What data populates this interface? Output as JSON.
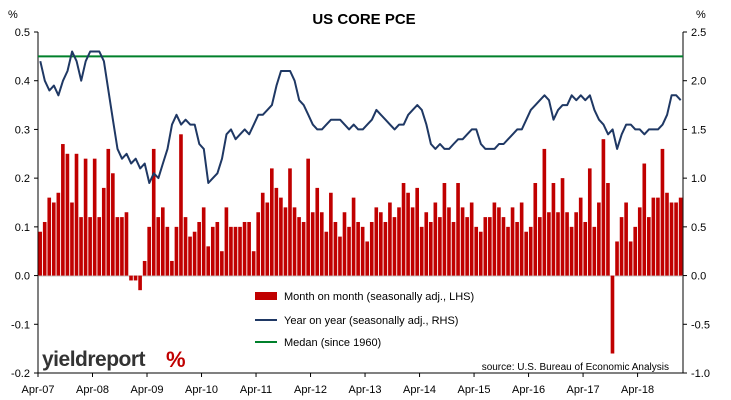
{
  "chart_data": {
    "type": "bar+line",
    "title": "US CORE PCE",
    "y_left": {
      "unit": "%",
      "min": -0.2,
      "max": 0.5,
      "ticks": [
        "-0.2",
        "-0.1",
        "0.0",
        "0.1",
        "0.2",
        "0.3",
        "0.4",
        "0.5"
      ]
    },
    "y_right": {
      "unit": "%",
      "min": -1.0,
      "max": 2.5,
      "ticks": [
        "-1.0",
        "-0.5",
        "0.0",
        "0.5",
        "1.0",
        "1.5",
        "2.0",
        "2.5"
      ]
    },
    "x_ticks": [
      "Apr-07",
      "Apr-08",
      "Apr-09",
      "Apr-10",
      "Apr-11",
      "Apr-12",
      "Apr-13",
      "Apr-14",
      "Apr-15",
      "Apr-16",
      "Apr-17",
      "Apr-18"
    ],
    "start_month": "Apr-07",
    "series": [
      {
        "name": "Month on month (seasonally adj., LHS)",
        "type": "bar",
        "axis": "left",
        "color": "#c00000",
        "values": [
          0.09,
          0.11,
          0.16,
          0.15,
          0.17,
          0.27,
          0.25,
          0.15,
          0.25,
          0.12,
          0.24,
          0.12,
          0.24,
          0.12,
          0.18,
          0.26,
          0.21,
          0.12,
          0.12,
          0.13,
          -0.01,
          -0.01,
          -0.03,
          0.03,
          0.1,
          0.26,
          0.12,
          0.14,
          0.1,
          0.03,
          0.1,
          0.29,
          0.12,
          0.08,
          0.09,
          0.11,
          0.14,
          0.06,
          0.1,
          0.11,
          0.05,
          0.14,
          0.1,
          0.1,
          0.1,
          0.11,
          0.11,
          0.05,
          0.13,
          0.17,
          0.15,
          0.22,
          0.18,
          0.16,
          0.14,
          0.22,
          0.14,
          0.12,
          0.11,
          0.24,
          0.13,
          0.18,
          0.13,
          0.09,
          0.17,
          0.11,
          0.08,
          0.13,
          0.1,
          0.16,
          0.11,
          0.1,
          0.07,
          0.11,
          0.14,
          0.13,
          0.11,
          0.15,
          0.12,
          0.14,
          0.19,
          0.17,
          0.14,
          0.18,
          0.1,
          0.13,
          0.11,
          0.15,
          0.12,
          0.19,
          0.14,
          0.11,
          0.19,
          0.14,
          0.12,
          0.15,
          0.1,
          0.09,
          0.12,
          0.12,
          0.15,
          0.14,
          0.12,
          0.1,
          0.14,
          0.11,
          0.15,
          0.09,
          0.1,
          0.19,
          0.12,
          0.26,
          0.13,
          0.19,
          0.13,
          0.2,
          0.13,
          0.1,
          0.13,
          0.16,
          0.11,
          0.22,
          0.1,
          0.15,
          0.28,
          0.19,
          -0.16,
          0.07,
          0.12,
          0.15,
          0.07,
          0.1,
          0.14,
          0.23,
          0.12,
          0.16,
          0.16,
          0.26,
          0.17,
          0.15,
          0.15,
          0.16
        ]
      },
      {
        "name": "Year on year (seasonally adj., RHS)",
        "type": "line",
        "axis": "right",
        "color": "#1f3864",
        "values": [
          2.2,
          2.0,
          1.9,
          1.95,
          1.85,
          2.0,
          2.1,
          2.3,
          2.2,
          2.0,
          2.2,
          2.3,
          2.3,
          2.3,
          2.2,
          1.9,
          1.6,
          1.3,
          1.2,
          1.25,
          1.15,
          1.2,
          1.1,
          1.15,
          0.95,
          1.05,
          1.0,
          1.15,
          1.3,
          1.55,
          1.65,
          1.55,
          1.6,
          1.55,
          1.55,
          1.35,
          1.3,
          0.95,
          1.0,
          1.05,
          1.2,
          1.45,
          1.5,
          1.4,
          1.45,
          1.5,
          1.45,
          1.55,
          1.65,
          1.65,
          1.7,
          1.75,
          1.95,
          2.1,
          2.1,
          2.1,
          2.0,
          1.8,
          1.75,
          1.65,
          1.55,
          1.5,
          1.5,
          1.55,
          1.6,
          1.6,
          1.6,
          1.55,
          1.5,
          1.55,
          1.5,
          1.5,
          1.55,
          1.6,
          1.7,
          1.65,
          1.6,
          1.55,
          1.5,
          1.55,
          1.55,
          1.65,
          1.7,
          1.75,
          1.7,
          1.55,
          1.35,
          1.3,
          1.35,
          1.3,
          1.3,
          1.35,
          1.4,
          1.4,
          1.45,
          1.5,
          1.5,
          1.35,
          1.3,
          1.3,
          1.3,
          1.35,
          1.35,
          1.4,
          1.45,
          1.5,
          1.5,
          1.6,
          1.7,
          1.75,
          1.8,
          1.85,
          1.8,
          1.6,
          1.7,
          1.75,
          1.75,
          1.85,
          1.8,
          1.85,
          1.8,
          1.85,
          1.7,
          1.6,
          1.55,
          1.45,
          1.5,
          1.3,
          1.45,
          1.55,
          1.55,
          1.5,
          1.5,
          1.45,
          1.5,
          1.5,
          1.5,
          1.55,
          1.65,
          1.85,
          1.85,
          1.8
        ]
      },
      {
        "name": "Medan (since 1960)",
        "type": "line",
        "axis": "left",
        "color": "#00802b",
        "values": [
          0.45,
          0.45
        ]
      }
    ],
    "legend_position": "bottom-center",
    "grid": false
  },
  "source_note": "source: U.S. Bureau of Economic Analysis",
  "logo": {
    "text": "yieldreport",
    "symbol": "%"
  }
}
